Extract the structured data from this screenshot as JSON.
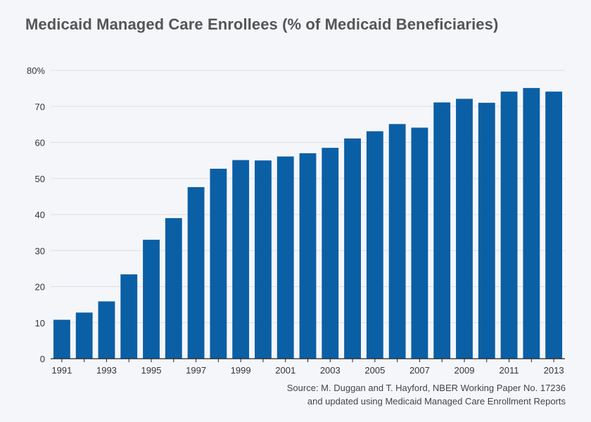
{
  "chart_data": {
    "type": "bar",
    "title": "Medicaid Managed Care Enrollees (% of Medicaid Beneficiaries)",
    "x": [
      1991,
      1992,
      1993,
      1994,
      1995,
      1996,
      1997,
      1998,
      1999,
      2000,
      2001,
      2002,
      2003,
      2004,
      2005,
      2006,
      2007,
      2008,
      2009,
      2010,
      2011,
      2012,
      2013
    ],
    "values": [
      10.8,
      12.8,
      15.9,
      23.4,
      33.0,
      39.0,
      47.6,
      52.7,
      55.1,
      55.0,
      56.1,
      57.0,
      58.5,
      61.1,
      63.1,
      65.1,
      64.1,
      71.1,
      72.1,
      71.0,
      74.1,
      75.1,
      74.1
    ],
    "x_tick_labels": [
      "1991",
      "1993",
      "1995",
      "1997",
      "1999",
      "2001",
      "2003",
      "2005",
      "2007",
      "2009",
      "2011",
      "2013"
    ],
    "y_tick_labels": [
      "0",
      "10",
      "20",
      "30",
      "40",
      "50",
      "60",
      "70",
      "80%"
    ],
    "ylim": [
      0,
      80
    ],
    "bar_color": "#0b5fa5",
    "gridline_color": "#dcdee6",
    "axis_color": "#222222",
    "grid": true,
    "legend": "none"
  },
  "source": {
    "line1": "Source: M. Duggan and T. Hayford, NBER Working Paper No. 17236",
    "line2": "and updated using Medicaid Managed Care Enrollment Reports"
  }
}
